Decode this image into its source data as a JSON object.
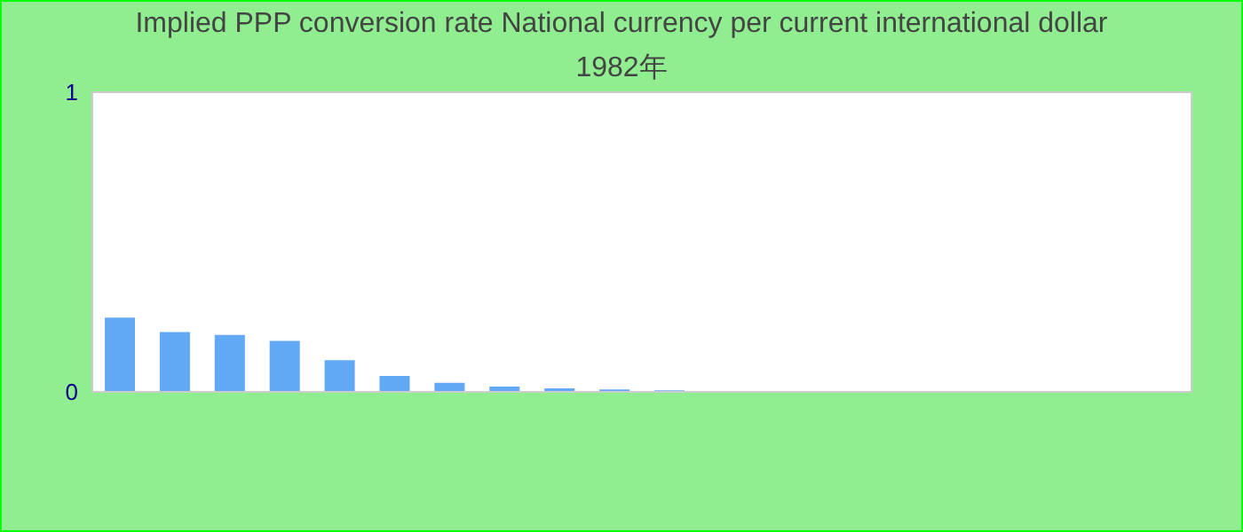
{
  "chart_data": {
    "type": "bar",
    "title": "Implied PPP conversion rate  National currency per current international dollar",
    "subtitle": "1982年",
    "categories": [
      null,
      null,
      null,
      null,
      null,
      null,
      null,
      null,
      null,
      null,
      null,
      null,
      null,
      null,
      null,
      null,
      null,
      null,
      null,
      null
    ],
    "values": [
      0.248,
      0.2,
      0.19,
      0.17,
      0.106,
      0.053,
      0.03,
      0.018,
      0.012,
      0.008,
      0.005,
      0,
      0,
      0,
      0,
      0,
      0,
      0,
      0,
      0
    ],
    "color": "#61a8f5",
    "ylim": [
      0,
      1
    ],
    "yticks": [
      0,
      1
    ]
  }
}
